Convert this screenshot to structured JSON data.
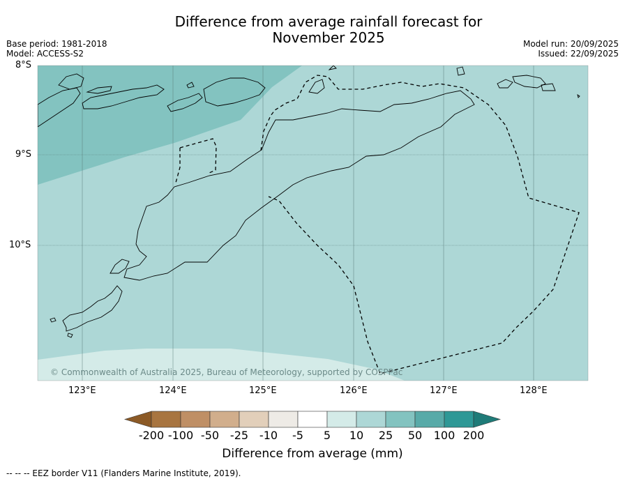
{
  "header": {
    "title_line1": "Difference from average rainfall forecast for",
    "title_line2": "November 2025",
    "base_period": "Base period: 1981-2018",
    "model": "Model: ACCESS-S2",
    "model_run": "Model run: 20/09/2025",
    "issued": "Issued: 22/09/2025"
  },
  "map": {
    "lat_labels": [
      "8°S",
      "9°S",
      "10°S"
    ],
    "lon_labels": [
      "123°E",
      "124°E",
      "125°E",
      "126°E",
      "127°E",
      "128°E"
    ],
    "copyright": "© Commonwealth of Australia 2025, Bureau of Meteorology, supported by COSPPac"
  },
  "legend": {
    "ticks": [
      "-200",
      "-100",
      "-50",
      "-25",
      "-10",
      "-5",
      "5",
      "10",
      "25",
      "50",
      "100",
      "200"
    ],
    "colors": [
      "#8c5a26",
      "#a87540",
      "#bf8f65",
      "#d1ae8c",
      "#e2cfba",
      "#eeebe6",
      "#ffffff",
      "#d4ebe8",
      "#add7d6",
      "#83c3c0",
      "#58aaa8",
      "#2e9896",
      "#1f7b78"
    ],
    "label": "Difference from average (mm)"
  },
  "footer": {
    "text": "--  --  -- EEZ border V11 (Flanders Marine Institute, 2019)."
  }
}
